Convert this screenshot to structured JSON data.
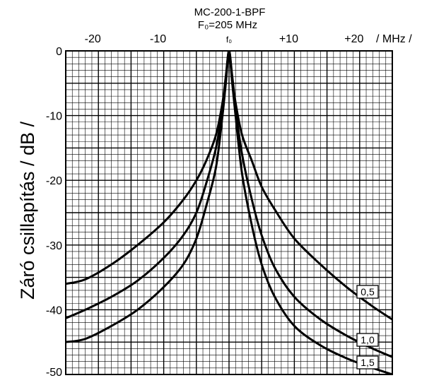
{
  "chart_data": {
    "type": "line",
    "title": "MC-200-1-BPF",
    "subtitle": "F₀=205 MHz",
    "xlabel": "/ MHz /",
    "ylabel": "Záró csillapítás  / dB /",
    "xlim": [
      -25,
      25
    ],
    "ylim": [
      -50,
      0
    ],
    "x_ticks": [
      {
        "value": -20,
        "label": "-20"
      },
      {
        "value": -10,
        "label": "-10"
      },
      {
        "value": 0,
        "label": "f₀"
      },
      {
        "value": 10,
        "label": "+10"
      },
      {
        "value": 20,
        "label": "+20"
      }
    ],
    "y_ticks": [
      {
        "value": 0,
        "label": "0"
      },
      {
        "value": -10,
        "label": "-10"
      },
      {
        "value": -20,
        "label": "-20"
      },
      {
        "value": -30,
        "label": "-30"
      },
      {
        "value": -40,
        "label": "-40"
      },
      {
        "value": -50,
        "label": "-50"
      }
    ],
    "grid": true,
    "series": [
      {
        "name": "0,5",
        "x": [
          -25,
          -22,
          -18,
          -14,
          -10,
          -7,
          -5,
          -3.5,
          -2,
          -1,
          -0.5,
          0,
          0.5,
          1,
          2,
          3.5,
          5,
          7,
          10,
          14,
          18,
          22,
          25
        ],
        "y": [
          -36,
          -35.3,
          -33,
          -30,
          -26.5,
          -23,
          -20,
          -17,
          -13,
          -8,
          -4,
          0,
          -4,
          -8,
          -13,
          -17,
          -21,
          -24.5,
          -29,
          -33,
          -36.5,
          -39.5,
          -41.5
        ]
      },
      {
        "name": "1,0",
        "x": [
          -25,
          -22,
          -18,
          -14,
          -10,
          -7,
          -5,
          -3.5,
          -2,
          -1,
          -0.5,
          0,
          0.5,
          1,
          2,
          3.5,
          5,
          7,
          10,
          14,
          18,
          22,
          25
        ],
        "y": [
          -41.3,
          -40,
          -38,
          -35.5,
          -32,
          -28.5,
          -25,
          -20.5,
          -15,
          -9,
          -5,
          0,
          -5,
          -9,
          -16,
          -23,
          -28.5,
          -33.5,
          -38,
          -41.5,
          -44,
          -46,
          -47.3
        ]
      },
      {
        "name": "1,5",
        "x": [
          -25,
          -22,
          -18,
          -14,
          -10,
          -7,
          -5,
          -3.5,
          -2,
          -1,
          -0.5,
          0,
          0.5,
          1,
          2,
          3.5,
          5,
          7,
          10,
          14,
          18,
          22,
          25
        ],
        "y": [
          -45,
          -44.5,
          -42.5,
          -40,
          -36.5,
          -33,
          -29,
          -24,
          -18,
          -10,
          -5,
          0,
          -5,
          -10,
          -19,
          -27,
          -33,
          -38,
          -42.5,
          -45.5,
          -47.5,
          -49,
          -50
        ]
      }
    ]
  }
}
